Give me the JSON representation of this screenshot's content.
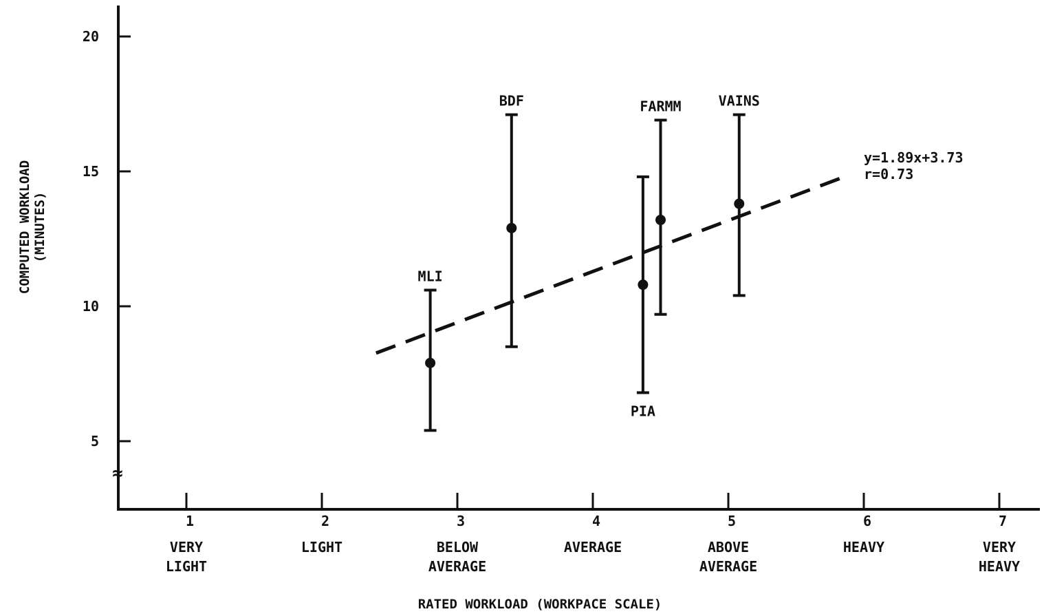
{
  "chart_data": {
    "type": "scatter",
    "title": "",
    "xlabel": "RATED WORKLOAD (WORKPACE SCALE)",
    "ylabel_line1": "COMPUTED WORKLOAD",
    "ylabel_line2": "(MINUTES)",
    "xlim": [
      0.5,
      7.3
    ],
    "ylim": [
      2.5,
      21
    ],
    "x_ticks": [
      1,
      2,
      3,
      4,
      5,
      6,
      7
    ],
    "y_ticks": [
      5,
      10,
      15,
      20
    ],
    "x_categories": [
      {
        "x": 1,
        "lines": [
          "VERY",
          "LIGHT"
        ]
      },
      {
        "x": 2,
        "lines": [
          "LIGHT"
        ]
      },
      {
        "x": 3,
        "lines": [
          "BELOW",
          "AVERAGE"
        ]
      },
      {
        "x": 4,
        "lines": [
          "AVERAGE"
        ]
      },
      {
        "x": 5,
        "lines": [
          "ABOVE",
          "AVERAGE"
        ]
      },
      {
        "x": 6,
        "lines": [
          "HEAVY"
        ]
      },
      {
        "x": 7,
        "lines": [
          "VERY",
          "HEAVY"
        ]
      }
    ],
    "points": [
      {
        "label": "MLI",
        "x": 2.8,
        "y": 7.9,
        "low": 5.4,
        "high": 10.6,
        "label_pos": "above"
      },
      {
        "label": "BDF",
        "x": 3.4,
        "y": 12.9,
        "low": 8.5,
        "high": 17.1,
        "label_pos": "above"
      },
      {
        "label": "PIA",
        "x": 4.37,
        "y": 10.8,
        "low": 6.8,
        "high": 14.8,
        "label_pos": "below"
      },
      {
        "label": "FARMM",
        "x": 4.5,
        "y": 13.2,
        "low": 9.7,
        "high": 16.9,
        "label_pos": "above"
      },
      {
        "label": "VAINS",
        "x": 5.08,
        "y": 13.8,
        "low": 10.4,
        "high": 17.1,
        "label_pos": "above"
      }
    ],
    "fit": {
      "slope": 1.89,
      "intercept": 3.73,
      "x_start": 2.4,
      "x_end": 5.85,
      "equation": "y=1.89x+3.73",
      "r_text": "r=0.73"
    },
    "axis_break": "≈"
  }
}
